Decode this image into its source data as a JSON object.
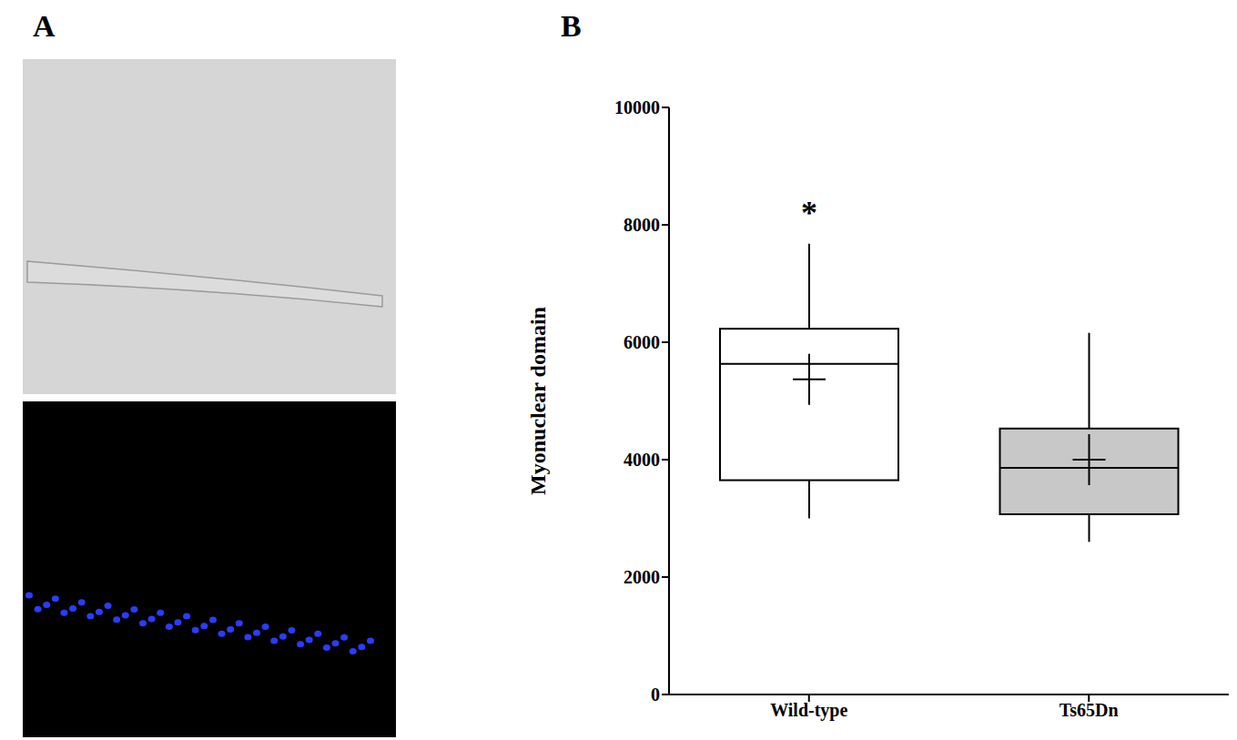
{
  "panel_labels": [
    "A",
    "B"
  ],
  "chart_data": {
    "type": "box",
    "y_label": "Myonuclear domain",
    "categories": [
      "Wild-type",
      "Ts65Dn"
    ],
    "min": [
      3000,
      2600
    ],
    "q1": [
      3650,
      3070
    ],
    "median": [
      5630,
      3860
    ],
    "q3": [
      6230,
      4530
    ],
    "max": [
      7680,
      6160
    ],
    "mean": [
      5370,
      4000
    ],
    "colors": [
      "#ffffff",
      "#c8c8c8"
    ],
    "marker": "plus",
    "ylim": [
      0,
      10000
    ],
    "yticks": [
      0,
      2000,
      4000,
      6000,
      8000,
      10000
    ],
    "grid": false,
    "annotations": [
      {
        "text": "*",
        "category": "Wild-type"
      }
    ]
  }
}
